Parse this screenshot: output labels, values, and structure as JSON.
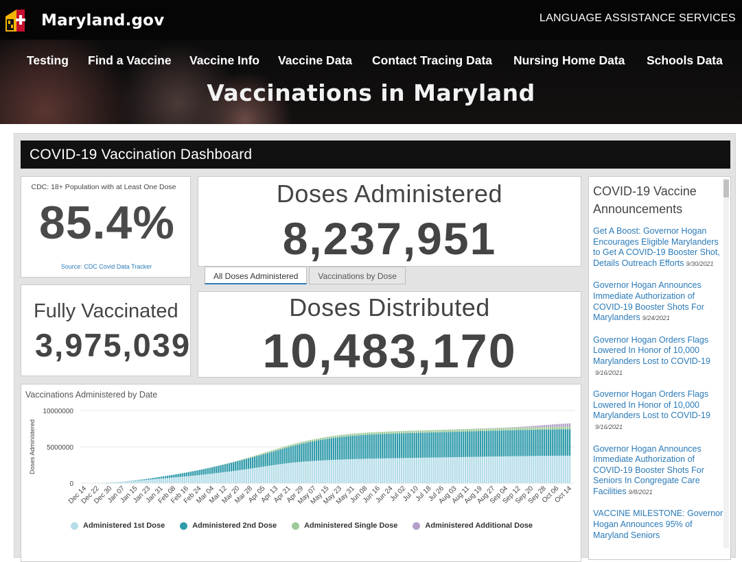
{
  "header": {
    "site_name": "Maryland.gov",
    "language_link": "LANGUAGE ASSISTANCE SERVICES",
    "nav": [
      "Testing",
      "Find a Vaccine",
      "Vaccine Info",
      "Vaccine Data",
      "Contact Tracing Data",
      "Nursing Home Data",
      "Schools Data"
    ],
    "hero_title": "Vaccinations in Maryland"
  },
  "dashboard": {
    "title": "COVID-19 Vaccination Dashboard",
    "cdc_panel": {
      "title": "CDC: 18+ Population with at Least One Dose",
      "value": "85.4%",
      "source": "Source: CDC Covid Data Tracker"
    },
    "fully_vaccinated": {
      "title": "Fully Vaccinated",
      "value": "3,975,039"
    },
    "doses_administered": {
      "title": "Doses Administered",
      "value": "8,237,951"
    },
    "tabs": [
      "All Doses Administered",
      "Vaccinations by Dose"
    ],
    "active_tab": "All Doses Administered",
    "doses_distributed": {
      "title": "Doses Distributed",
      "value": "10,483,170"
    },
    "chart": {
      "title": "Vaccinations Administered by Date"
    },
    "announcements": {
      "title": "COVID-19 Vaccine Announcements",
      "items": [
        {
          "text": "Get A Boost: Governor Hogan Encourages Eligible Marylanders to Get A COVID-19 Booster Shot, Details Outreach Efforts",
          "date": "9/30/2021"
        },
        {
          "text": "Governor Hogan Announces Immediate Authorization of COVID-19 Booster Shots For Marylanders",
          "date": "9/24/2021"
        },
        {
          "text": "Governor Hogan Orders Flags Lowered In Honor of 10,000 Marylanders Lost to COVID-19",
          "date": "9/16/2021"
        },
        {
          "text": "Governor Hogan Orders Flags Lowered In Honor of 10,000 Marylanders Lost to COVID-19",
          "date": "9/16/2021"
        },
        {
          "text": "Governor Hogan Announces Immediate Authorization of COVID-19 Booster Shots For Seniors In Congregate Care Facilities",
          "date": "9/8/2021"
        },
        {
          "text": "VACCINE MILESTONE: Governor Hogan Announces 95% of Maryland Seniors",
          "date": ""
        }
      ]
    }
  },
  "chart_data": {
    "type": "bar",
    "title": "Vaccinations Administered by Date",
    "ylabel": "Doses Administered",
    "xlabel": "",
    "ylim": [
      0,
      10000000
    ],
    "yticks": [
      0,
      5000000,
      10000000
    ],
    "ytick_labels": [
      "0",
      "5000000",
      "10000000"
    ],
    "stacked": true,
    "grid": true,
    "legend_position": "bottom",
    "categories": [
      "Dec 14",
      "Dec 22",
      "Dec 30",
      "Jan 07",
      "Jan 15",
      "Jan 23",
      "Jan 31",
      "Feb 08",
      "Feb 16",
      "Feb 24",
      "Mar 04",
      "Mar 12",
      "Mar 20",
      "Mar 28",
      "Apr 05",
      "Apr 13",
      "Apr 21",
      "Apr 29",
      "May 07",
      "May 15",
      "May 23",
      "May 31",
      "Jun 08",
      "Jun 16",
      "Jun 24",
      "Jul 02",
      "Jul 10",
      "Jul 18",
      "Jul 26",
      "Aug 03",
      "Aug 11",
      "Aug 19",
      "Aug 27",
      "Sep 04",
      "Sep 12",
      "Sep 20",
      "Sep 28",
      "Oct 06",
      "Oct 14"
    ],
    "series": [
      {
        "name": "Administered 1st Dose",
        "color": "#b5dde8",
        "values": [
          0,
          30000,
          100000,
          200000,
          330000,
          480000,
          640000,
          790000,
          950000,
          1120000,
          1320000,
          1530000,
          1760000,
          2010000,
          2280000,
          2540000,
          2780000,
          2950000,
          3070000,
          3170000,
          3250000,
          3310000,
          3360000,
          3400000,
          3430000,
          3460000,
          3490000,
          3520000,
          3550000,
          3580000,
          3610000,
          3640000,
          3670000,
          3700000,
          3720000,
          3740000,
          3760000,
          3780000,
          3790000
        ]
      },
      {
        "name": "Administered 2nd Dose",
        "color": "#2e9aaa",
        "values": [
          0,
          0,
          0,
          10000,
          60000,
          140000,
          250000,
          380000,
          530000,
          700000,
          880000,
          1070000,
          1270000,
          1470000,
          1680000,
          1920000,
          2190000,
          2470000,
          2720000,
          2930000,
          3090000,
          3210000,
          3290000,
          3340000,
          3380000,
          3410000,
          3430000,
          3450000,
          3470000,
          3490000,
          3510000,
          3530000,
          3550000,
          3570000,
          3590000,
          3600000,
          3610000,
          3620000,
          3630000
        ]
      },
      {
        "name": "Administered Single Dose",
        "color": "#9ec99a",
        "values": [
          0,
          0,
          0,
          0,
          0,
          0,
          0,
          0,
          0,
          0,
          10000,
          40000,
          80000,
          130000,
          190000,
          230000,
          250000,
          260000,
          270000,
          280000,
          290000,
          300000,
          305000,
          310000,
          315000,
          320000,
          325000,
          330000,
          335000,
          340000,
          342000,
          344000,
          346000,
          348000,
          350000,
          351000,
          352000,
          353000,
          354000
        ]
      },
      {
        "name": "Administered Additional Dose",
        "color": "#b39fc9",
        "values": [
          0,
          0,
          0,
          0,
          0,
          0,
          0,
          0,
          0,
          0,
          0,
          0,
          0,
          0,
          0,
          0,
          0,
          0,
          0,
          0,
          0,
          0,
          0,
          0,
          0,
          0,
          0,
          0,
          0,
          0,
          5000,
          15000,
          25000,
          40000,
          90000,
          170000,
          280000,
          380000,
          460000
        ]
      }
    ]
  }
}
